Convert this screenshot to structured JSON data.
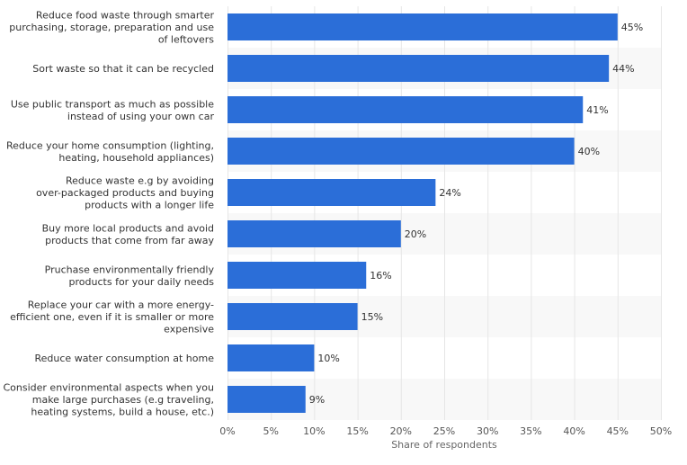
{
  "chart_data": {
    "type": "bar",
    "orientation": "horizontal",
    "categories": [
      [
        "Reduce food waste through smarter",
        "purchasing, storage, preparation and use",
        "of leftovers"
      ],
      [
        "Sort waste so that it can be recycled"
      ],
      [
        "Use public transport as much as possible",
        "instead of using your own car"
      ],
      [
        "Reduce your home consumption (lighting,",
        "heating, household appliances)"
      ],
      [
        "Reduce waste e.g by avoiding",
        "over-packaged products and buying",
        "products with a longer life"
      ],
      [
        "Buy more local products and avoid",
        "products that come from far away"
      ],
      [
        "Pruchase environmentally friendly",
        "products for your daily needs"
      ],
      [
        "Replace your car with a more energy-",
        "efficient one, even if it is smaller or more",
        "expensive"
      ],
      [
        "Reduce water consumption at home"
      ],
      [
        "Consider environmental aspects when you",
        "make large purchases (e.g traveling,",
        "heating systems, build a house, etc.)"
      ]
    ],
    "values": [
      45,
      44,
      41,
      40,
      24,
      20,
      16,
      15,
      10,
      9
    ],
    "value_labels": [
      "45%",
      "44%",
      "41%",
      "40%",
      "24%",
      "20%",
      "16%",
      "15%",
      "10%",
      "9%"
    ],
    "xlim": [
      0,
      50
    ],
    "x_ticks": [
      0,
      5,
      10,
      15,
      20,
      25,
      30,
      35,
      40,
      45,
      50
    ],
    "x_tick_labels": [
      "0%",
      "5%",
      "10%",
      "15%",
      "20%",
      "25%",
      "30%",
      "35%",
      "40%",
      "45%",
      "50%"
    ],
    "xlabel": "Share of respondents",
    "ylabel": "",
    "title": "",
    "bar_color": "#2b6ed8",
    "band_color": "#f8f8f8",
    "grid": true,
    "legend": "none"
  }
}
